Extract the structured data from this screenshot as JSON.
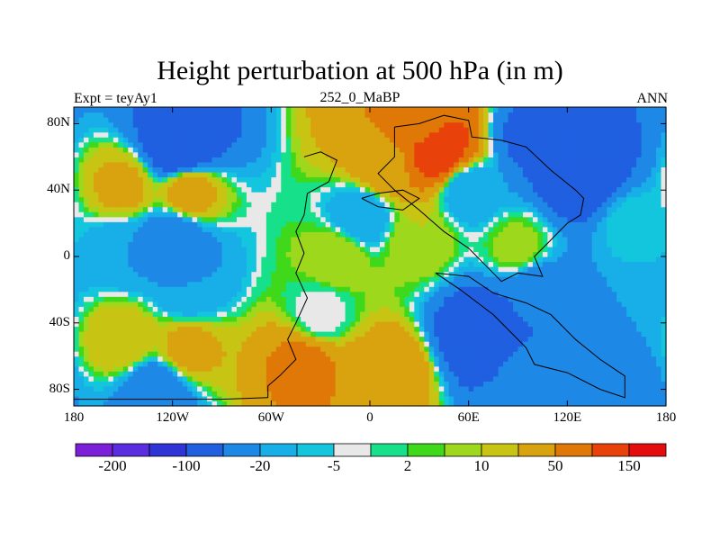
{
  "chart_data": {
    "type": "heatmap",
    "title": "Height perturbation at 500 hPa (in m)",
    "subtitle_left": "Expt = teyAy1",
    "subtitle_center": "252_0_MaBP",
    "subtitle_right": "ANN",
    "xlim": [
      -180,
      180
    ],
    "ylim": [
      -90,
      90
    ],
    "x_ticks": [
      {
        "value": -180,
        "label": "180"
      },
      {
        "value": -120,
        "label": "120W"
      },
      {
        "value": -60,
        "label": "60W"
      },
      {
        "value": 0,
        "label": "0"
      },
      {
        "value": 60,
        "label": "60E"
      },
      {
        "value": 120,
        "label": "120E"
      },
      {
        "value": 180,
        "label": "180"
      }
    ],
    "y_ticks": [
      {
        "value": 80,
        "label": "80N"
      },
      {
        "value": 40,
        "label": "40N"
      },
      {
        "value": 0,
        "label": "0"
      },
      {
        "value": -40,
        "label": "40S"
      },
      {
        "value": -80,
        "label": "80S"
      }
    ],
    "colorbar": {
      "colors": [
        "#7b1fd8",
        "#5a2ee0",
        "#2f34d6",
        "#1f5fe0",
        "#1e88e6",
        "#18aee8",
        "#13c6de",
        "#e8e8e8",
        "#16e08a",
        "#3fd81a",
        "#9ed81c",
        "#c8c414",
        "#d8a30f",
        "#e07808",
        "#e8420a",
        "#e40c0c"
      ],
      "tick_labels": [
        {
          "boundary": 1,
          "label": "-200"
        },
        {
          "boundary": 3,
          "label": "-100"
        },
        {
          "boundary": 5,
          "label": "-20"
        },
        {
          "boundary": 7,
          "label": "-5"
        },
        {
          "boundary": 9,
          "label": "2"
        },
        {
          "boundary": 11,
          "label": "10"
        },
        {
          "boundary": 13,
          "label": "50"
        },
        {
          "boundary": 15,
          "label": "150"
        }
      ]
    },
    "field_features": [
      {
        "lon": -115,
        "lat": 65,
        "value": -100
      },
      {
        "lon": -110,
        "lat": 40,
        "value": 30
      },
      {
        "lon": -150,
        "lat": 42,
        "value": 25
      },
      {
        "lon": -120,
        "lat": 10,
        "value": -40
      },
      {
        "lon": -150,
        "lat": 5,
        "value": -20
      },
      {
        "lon": -110,
        "lat": -20,
        "value": -20
      },
      {
        "lon": -110,
        "lat": -55,
        "value": 25
      },
      {
        "lon": -150,
        "lat": -50,
        "value": 20
      },
      {
        "lon": -130,
        "lat": -80,
        "value": -40
      },
      {
        "lon": -40,
        "lat": -65,
        "value": 60
      },
      {
        "lon": 10,
        "lat": -70,
        "value": 40
      },
      {
        "lon": 30,
        "lat": 80,
        "value": 50
      },
      {
        "lon": 40,
        "lat": 65,
        "value": 150
      },
      {
        "lon": 10,
        "lat": 55,
        "value": 40
      },
      {
        "lon": 130,
        "lat": 50,
        "value": -100
      },
      {
        "lon": 100,
        "lat": 72,
        "value": -60
      },
      {
        "lon": 60,
        "lat": 40,
        "value": -20
      },
      {
        "lon": 160,
        "lat": 20,
        "value": -5
      },
      {
        "lon": -5,
        "lat": 25,
        "value": -20
      },
      {
        "lon": 30,
        "lat": 10,
        "value": 10
      },
      {
        "lon": 90,
        "lat": 5,
        "value": 8
      },
      {
        "lon": -20,
        "lat": 0,
        "value": 10
      },
      {
        "lon": 100,
        "lat": -20,
        "value": -40
      },
      {
        "lon": 70,
        "lat": -45,
        "value": -100
      },
      {
        "lon": 150,
        "lat": -35,
        "value": -20
      },
      {
        "lon": 100,
        "lat": -75,
        "value": -20
      },
      {
        "lon": 150,
        "lat": -75,
        "value": -30
      },
      {
        "lon": -30,
        "lat": -35,
        "value": -5
      }
    ]
  }
}
